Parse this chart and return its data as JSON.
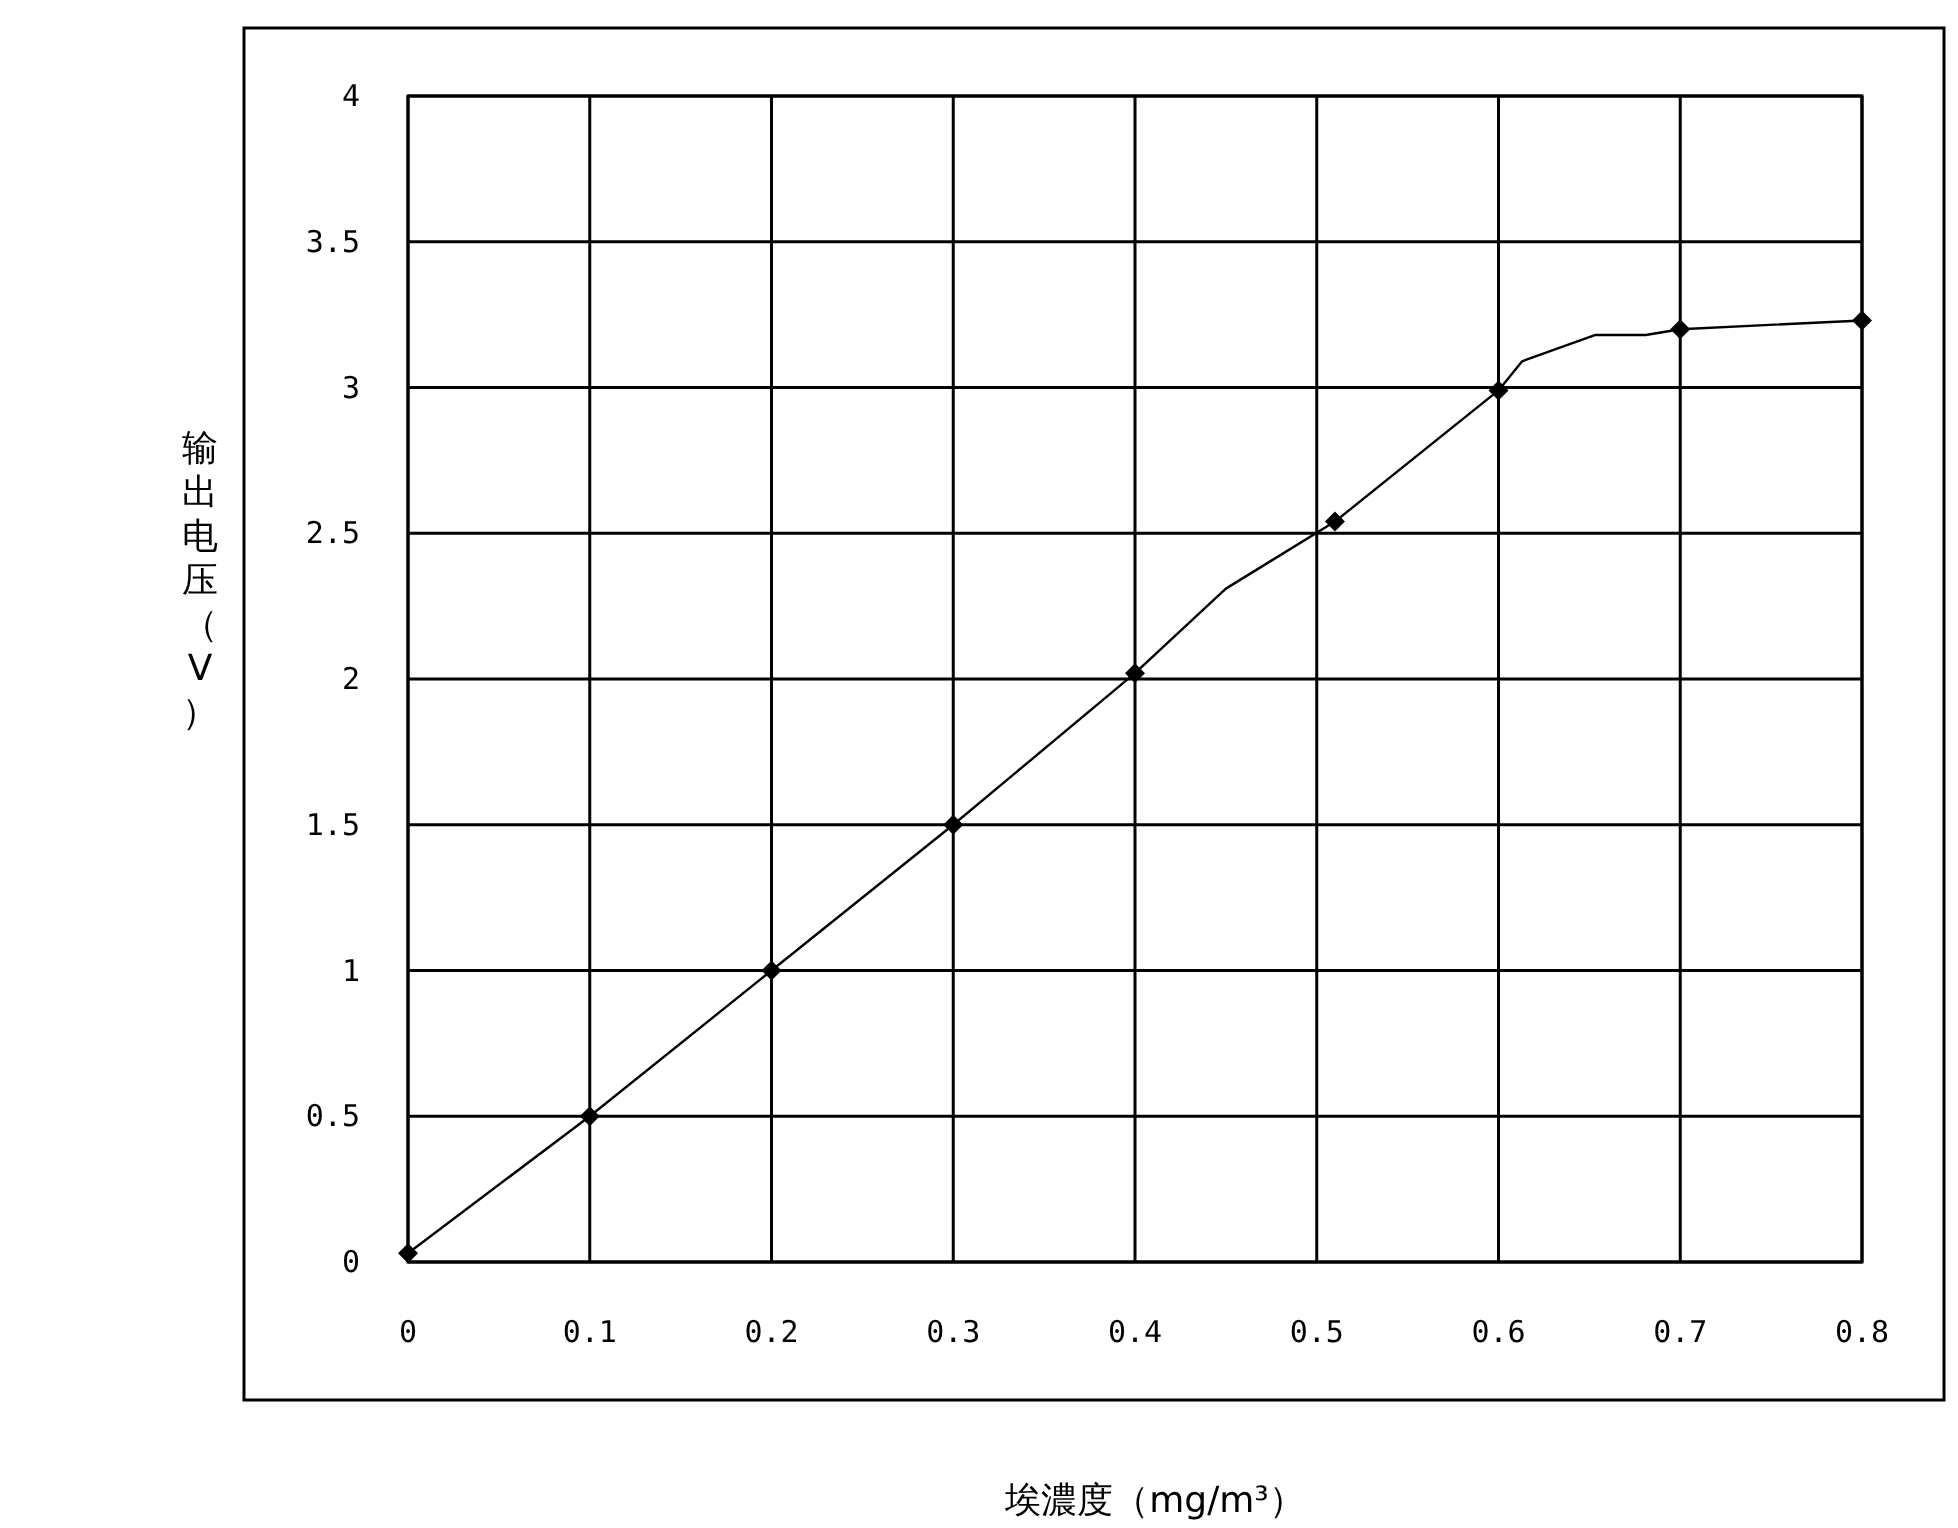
{
  "chart_data": {
    "type": "line",
    "xlabel": "埃濃度（mg/m³）",
    "ylabel": "输出电压（V）",
    "xlim": [
      0,
      0.8
    ],
    "ylim": [
      0,
      4
    ],
    "xticks": [
      0,
      0.1,
      0.2,
      0.3,
      0.4,
      0.5,
      0.6,
      0.7,
      0.8
    ],
    "yticks": [
      0,
      0.5,
      1,
      1.5,
      2,
      2.5,
      3,
      3.5,
      4
    ],
    "grid": true,
    "series": [
      {
        "color": "#000000",
        "marker": "none",
        "x": [
          0,
          0.1,
          0.2,
          0.3,
          0.4,
          0.45,
          0.51,
          0.6,
          0.613,
          0.653,
          0.681,
          0.7,
          0.8
        ],
        "values": [
          0.03,
          0.5,
          1.0,
          1.5,
          2.02,
          2.31,
          2.54,
          2.99,
          3.09,
          3.18,
          3.18,
          3.2,
          3.23
        ]
      },
      {
        "type": "scatter",
        "color": "#000000",
        "marker": "diamond",
        "x": [
          0,
          0.1,
          0.2,
          0.3,
          0.4,
          0.51,
          0.6,
          0.7,
          0.8
        ],
        "values": [
          0.03,
          0.5,
          1.0,
          1.5,
          2.02,
          2.54,
          2.99,
          3.2,
          3.23
        ]
      }
    ]
  }
}
